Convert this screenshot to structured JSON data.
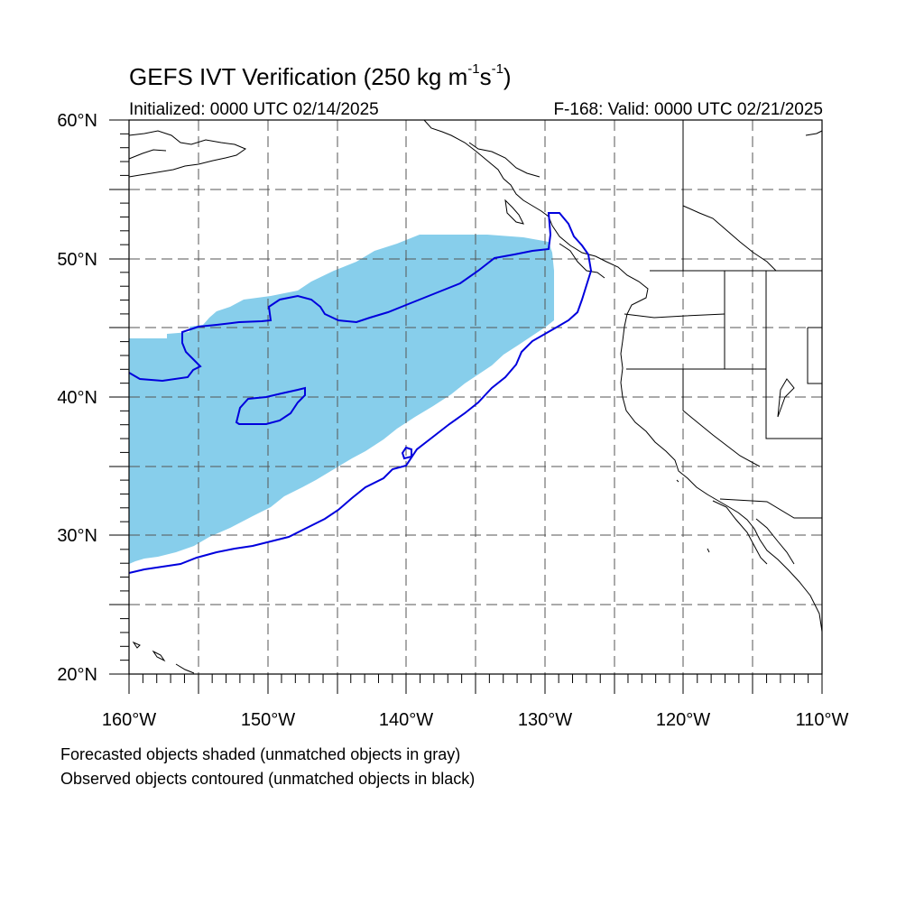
{
  "title": {
    "main": "GEFS IVT Verification (250 kg m",
    "exp1": "-1",
    "mid": "s",
    "exp2": "-1",
    "end": ")"
  },
  "subtitle": {
    "initialized": "Initialized: 0000 UTC 02/14/2025",
    "valid": "F-168: Valid: 0000 UTC 02/21/2025"
  },
  "map": {
    "lon_range": [
      -160,
      -110
    ],
    "lat_range": [
      20,
      60
    ],
    "grid": true,
    "lat_labels": [
      "60°N",
      "50°N",
      "40°N",
      "30°N",
      "20°N"
    ],
    "lon_labels": [
      "160°W",
      "150°W",
      "140°W",
      "130°W",
      "120°W",
      "110°W"
    ],
    "forecast_fill_color": "#87ceeb",
    "observed_contour_color": "#0000dd"
  },
  "legend": {
    "line1": "Forecasted objects shaded (unmatched objects in gray)",
    "line2": "Observed objects contoured (unmatched objects in black)"
  }
}
